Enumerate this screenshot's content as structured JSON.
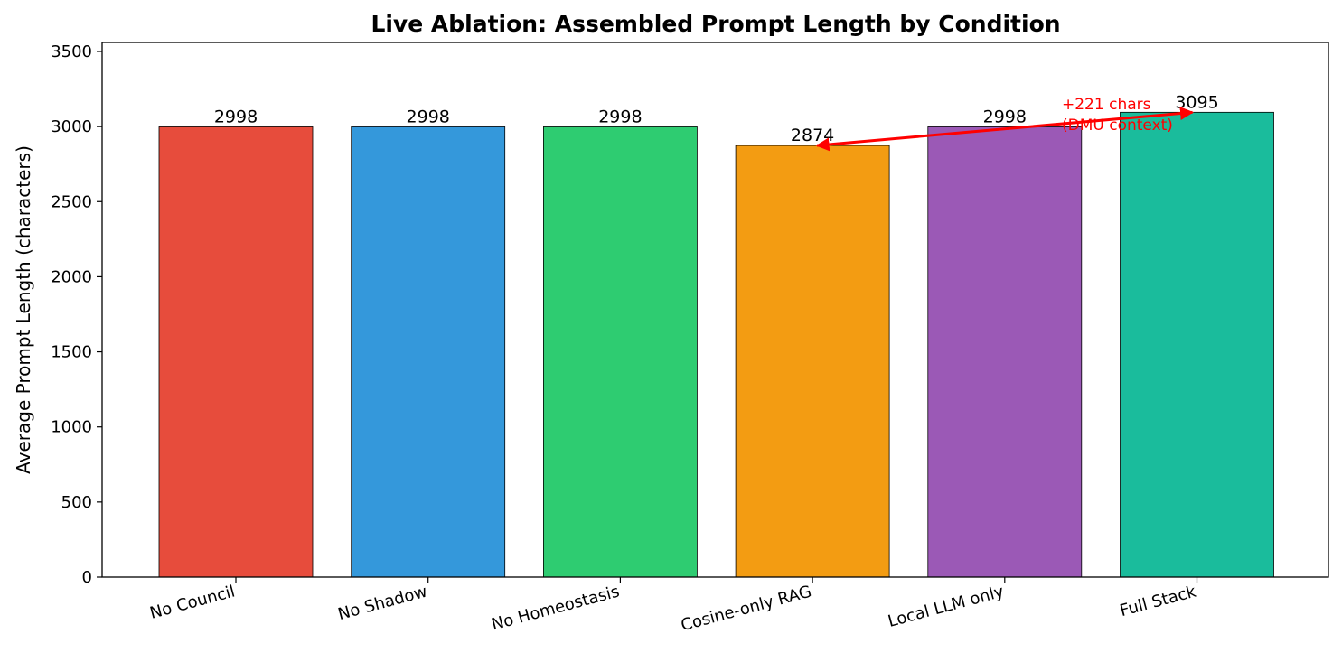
{
  "chart_data": {
    "type": "bar",
    "title": "Live Ablation: Assembled Prompt Length by Condition",
    "xlabel": "",
    "ylabel": "Average Prompt Length (characters)",
    "ylim": [
      0,
      3560
    ],
    "yticks": [
      0,
      500,
      1000,
      1500,
      2000,
      2500,
      3000,
      3500
    ],
    "categories": [
      "No Council",
      "No Shadow",
      "No Homeostasis",
      "Cosine-only RAG",
      "Local LLM only",
      "Full Stack"
    ],
    "values": [
      2998,
      2998,
      2998,
      2874,
      2998,
      3095
    ],
    "data_labels": [
      "2998",
      "2998",
      "2998",
      "2874",
      "2998",
      "3095"
    ],
    "colors": [
      "#e74c3c",
      "#3498db",
      "#2ecc71",
      "#f39c12",
      "#9b59b6",
      "#1abc9c"
    ],
    "grid": false,
    "annotation": {
      "line1": "+221 chars",
      "line2": "(DMU context)",
      "from_category": "Full Stack",
      "to_category": "Cosine-only RAG",
      "color": "#ff0000"
    }
  }
}
